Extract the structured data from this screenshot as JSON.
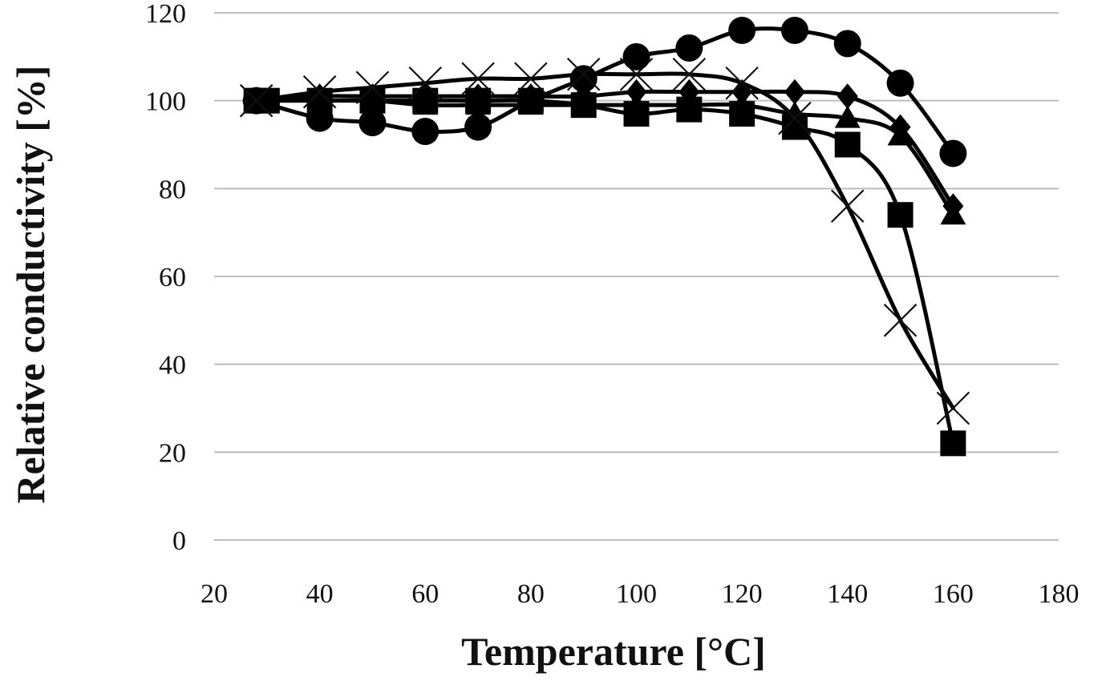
{
  "chart_data": {
    "type": "line",
    "xlabel": "Temperature [°C]",
    "ylabel": "Relative conductivity [%]",
    "xlim": [
      20,
      180
    ],
    "ylim": [
      0,
      120
    ],
    "x_ticks": [
      20,
      40,
      60,
      80,
      100,
      120,
      140,
      160,
      180
    ],
    "y_ticks": [
      0,
      20,
      40,
      60,
      80,
      100,
      120
    ],
    "grid": "horizontal",
    "legend": "none",
    "series": [
      {
        "marker": "circle",
        "color": "#000000",
        "x": [
          28,
          40,
          50,
          60,
          70,
          80,
          90,
          100,
          110,
          120,
          130,
          140,
          150,
          160
        ],
        "y": [
          100,
          96,
          95,
          93,
          94,
          100,
          105,
          110,
          112,
          116,
          116,
          113,
          104,
          88
        ]
      },
      {
        "marker": "square",
        "color": "#000000",
        "x": [
          28,
          30,
          40,
          50,
          60,
          70,
          80,
          90,
          100,
          110,
          120,
          130,
          140,
          150,
          160
        ],
        "y": [
          100,
          100,
          100,
          100,
          100,
          100,
          100,
          99,
          97,
          98,
          97,
          94,
          90,
          74,
          22
        ]
      },
      {
        "marker": "diamond",
        "color": "#000000",
        "x": [
          28,
          40,
          50,
          60,
          70,
          80,
          90,
          100,
          110,
          120,
          130,
          140,
          150,
          160
        ],
        "y": [
          100,
          101,
          101,
          101,
          101,
          101,
          101,
          102,
          102,
          102,
          102,
          101,
          94,
          76
        ]
      },
      {
        "marker": "triangle",
        "color": "#000000",
        "x": [
          28,
          40,
          50,
          60,
          70,
          80,
          90,
          100,
          110,
          120,
          130,
          140,
          150,
          160
        ],
        "y": [
          100,
          100,
          100,
          99,
          99,
          99,
          99,
          99,
          99,
          99,
          97,
          96,
          92,
          74
        ]
      },
      {
        "marker": "x",
        "color": "#000000",
        "x": [
          28,
          40,
          50,
          60,
          70,
          80,
          90,
          100,
          110,
          120,
          130,
          140,
          150,
          160
        ],
        "y": [
          100,
          102,
          103,
          104,
          105,
          105,
          106,
          106,
          106,
          104,
          96,
          76,
          50,
          30
        ]
      }
    ]
  }
}
